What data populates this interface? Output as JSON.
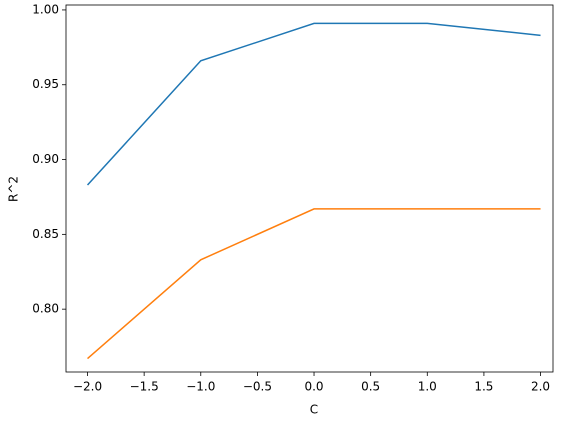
{
  "chart_data": {
    "type": "line",
    "xlabel": "C",
    "ylabel": "R^2",
    "x": [
      -2,
      -1,
      0,
      1,
      2
    ],
    "series": [
      {
        "color": "#1f77b4",
        "values": [
          0.883,
          0.966,
          0.991,
          0.991,
          0.983
        ]
      },
      {
        "color": "#ff7f0e",
        "values": [
          0.767,
          0.833,
          0.867,
          0.867,
          0.867
        ]
      }
    ],
    "xlim": [
      -2.19,
      2.11
    ],
    "ylim": [
      0.758,
      1.0033
    ],
    "xticks": [
      {
        "value": -2,
        "label": "−2.0"
      },
      {
        "value": -1.5,
        "label": "−1.5"
      },
      {
        "value": -1,
        "label": "−1.0"
      },
      {
        "value": -0.5,
        "label": "−0.5"
      },
      {
        "value": 0,
        "label": "0.0"
      },
      {
        "value": 0.5,
        "label": "0.5"
      },
      {
        "value": 1,
        "label": "1.0"
      },
      {
        "value": 1.5,
        "label": "1.5"
      },
      {
        "value": 2,
        "label": "2.0"
      }
    ],
    "yticks": [
      {
        "value": 0.8,
        "label": "0.80"
      },
      {
        "value": 0.85,
        "label": "0.85"
      },
      {
        "value": 0.9,
        "label": "0.90"
      },
      {
        "value": 0.95,
        "label": "0.95"
      },
      {
        "value": 1,
        "label": "1.00"
      }
    ]
  }
}
